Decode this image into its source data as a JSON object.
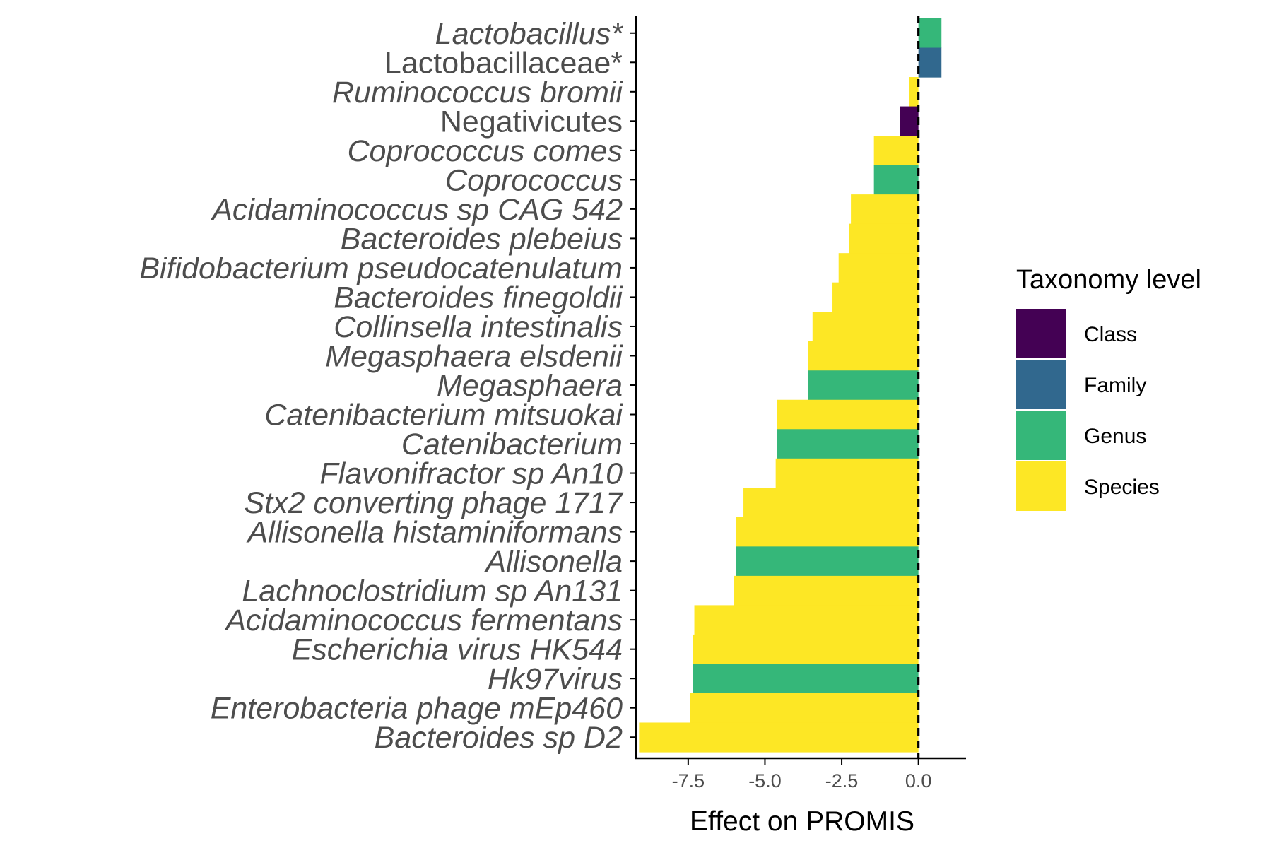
{
  "chart_data": {
    "type": "bar",
    "orientation": "horizontal",
    "xlabel": "Effect on PROMIS",
    "ylabel": "",
    "xlim": [
      -9.2,
      1.55
    ],
    "xticks": [
      -7.5,
      -5.0,
      -2.5,
      0.0
    ],
    "xtick_labels": [
      "-7.5",
      "-5.0",
      "-2.5",
      "0.0"
    ],
    "reference_line": 0.0,
    "grid": false,
    "legend": {
      "title": "Taxonomy level",
      "position": "right",
      "items": [
        {
          "label": "Class",
          "color": "#440154"
        },
        {
          "label": "Family",
          "color": "#31688E"
        },
        {
          "label": "Genus",
          "color": "#35B779"
        },
        {
          "label": "Species",
          "color": "#FDE725"
        }
      ]
    },
    "bars": [
      {
        "label": "Lactobacillus*",
        "value": 0.75,
        "level": "Genus",
        "italic": true
      },
      {
        "label": "Lactobacillaceae*",
        "value": 0.75,
        "level": "Family",
        "italic": false
      },
      {
        "label": "Ruminococcus bromii",
        "value": -0.3,
        "level": "Species",
        "italic": true
      },
      {
        "label": "Negativicutes",
        "value": -0.6,
        "level": "Class",
        "italic": false
      },
      {
        "label": "Coprococcus comes",
        "value": -1.45,
        "level": "Species",
        "italic": true
      },
      {
        "label": "Coprococcus",
        "value": -1.45,
        "level": "Genus",
        "italic": true
      },
      {
        "label": "Acidaminococcus sp CAG 542",
        "value": -2.2,
        "level": "Species",
        "italic": true
      },
      {
        "label": "Bacteroides plebeius",
        "value": -2.25,
        "level": "Species",
        "italic": true
      },
      {
        "label": "Bifidobacterium pseudocatenulatum",
        "value": -2.6,
        "level": "Species",
        "italic": true
      },
      {
        "label": "Bacteroides finegoldii",
        "value": -2.8,
        "level": "Species",
        "italic": true
      },
      {
        "label": "Collinsella intestinalis",
        "value": -3.45,
        "level": "Species",
        "italic": true
      },
      {
        "label": "Megasphaera elsdenii",
        "value": -3.6,
        "level": "Species",
        "italic": true
      },
      {
        "label": "Megasphaera",
        "value": -3.6,
        "level": "Genus",
        "italic": true
      },
      {
        "label": "Catenibacterium mitsuokai",
        "value": -4.6,
        "level": "Species",
        "italic": true
      },
      {
        "label": "Catenibacterium",
        "value": -4.6,
        "level": "Genus",
        "italic": true
      },
      {
        "label": "Flavonifractor sp An10",
        "value": -4.65,
        "level": "Species",
        "italic": true
      },
      {
        "label": "Stx2 converting phage 1717",
        "value": -5.7,
        "level": "Species",
        "italic": true
      },
      {
        "label": "Allisonella histaminiformans",
        "value": -5.95,
        "level": "Species",
        "italic": true
      },
      {
        "label": "Allisonella",
        "value": -5.95,
        "level": "Genus",
        "italic": true
      },
      {
        "label": "Lachnoclostridium sp An131",
        "value": -6.0,
        "level": "Species",
        "italic": true
      },
      {
        "label": "Acidaminococcus fermentans",
        "value": -7.3,
        "level": "Species",
        "italic": true
      },
      {
        "label": "Escherichia virus HK544",
        "value": -7.35,
        "level": "Species",
        "italic": true
      },
      {
        "label": "Hk97virus",
        "value": -7.35,
        "level": "Genus",
        "italic": true
      },
      {
        "label": "Enterobacteria phage mEp460",
        "value": -7.45,
        "level": "Species",
        "italic": true
      },
      {
        "label": "Bacteroides sp D2",
        "value": -9.1,
        "level": "Species",
        "italic": true
      }
    ]
  }
}
